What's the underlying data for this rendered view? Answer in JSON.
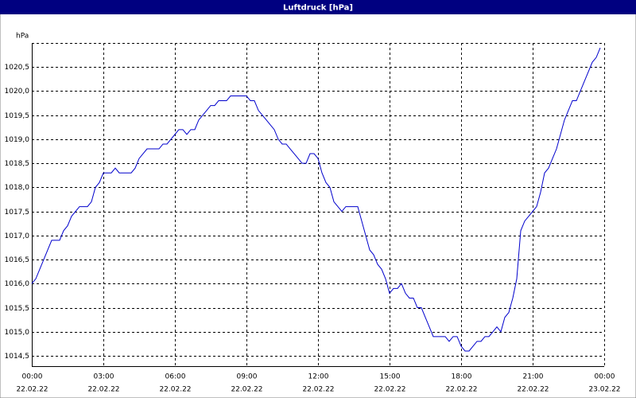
{
  "chart_data": {
    "type": "line",
    "title": "Luftdruck [hPa]",
    "ylabel": "hPa",
    "x": [
      0,
      10,
      20,
      30,
      40,
      50,
      60,
      70,
      80,
      90,
      100,
      110,
      120,
      130,
      140,
      150,
      160,
      170,
      180,
      190,
      200,
      210,
      220,
      230,
      240,
      250,
      260,
      270,
      280,
      290,
      300,
      310,
      320,
      330,
      340,
      350,
      360,
      370,
      380,
      390,
      400,
      410,
      420,
      430,
      440,
      450,
      460,
      470,
      480,
      490,
      500,
      510,
      520,
      530,
      540,
      550,
      560,
      570,
      580,
      590,
      600,
      610,
      620,
      630,
      640,
      650,
      660,
      670,
      680,
      690,
      700,
      710,
      720,
      730,
      740,
      750,
      760,
      770,
      780,
      790,
      800,
      810,
      820,
      830,
      840,
      850,
      860,
      870,
      880,
      890,
      900,
      910,
      920,
      930,
      940,
      950,
      960,
      970,
      980,
      990,
      1000,
      1010,
      1020,
      1030,
      1040,
      1050,
      1060,
      1070,
      1080,
      1090,
      1100,
      1110,
      1120,
      1130,
      1140,
      1150,
      1160,
      1170,
      1180,
      1190,
      1200,
      1210,
      1220,
      1230,
      1240,
      1250,
      1260,
      1270,
      1280,
      1290,
      1300,
      1310,
      1320,
      1330,
      1340,
      1350,
      1360,
      1370,
      1380,
      1390,
      1400,
      1410,
      1420,
      1430
    ],
    "series": [
      {
        "name": "Luftdruck",
        "color": "#0000cc",
        "values": [
          1016.0,
          1016.1,
          1016.3,
          1016.5,
          1016.7,
          1016.9,
          1016.9,
          1016.9,
          1017.1,
          1017.2,
          1017.4,
          1017.5,
          1017.6,
          1017.6,
          1017.6,
          1017.7,
          1018.0,
          1018.1,
          1018.3,
          1018.3,
          1018.3,
          1018.4,
          1018.3,
          1018.3,
          1018.3,
          1018.3,
          1018.4,
          1018.6,
          1018.7,
          1018.8,
          1018.8,
          1018.8,
          1018.8,
          1018.9,
          1018.9,
          1019.0,
          1019.1,
          1019.2,
          1019.2,
          1019.1,
          1019.2,
          1019.2,
          1019.4,
          1019.5,
          1019.6,
          1019.7,
          1019.7,
          1019.8,
          1019.8,
          1019.8,
          1019.9,
          1019.9,
          1019.9,
          1019.9,
          1019.9,
          1019.8,
          1019.8,
          1019.6,
          1019.5,
          1019.4,
          1019.3,
          1019.2,
          1019.0,
          1018.9,
          1018.9,
          1018.8,
          1018.7,
          1018.6,
          1018.5,
          1018.5,
          1018.7,
          1018.7,
          1018.6,
          1018.3,
          1018.1,
          1018.0,
          1017.7,
          1017.6,
          1017.5,
          1017.6,
          1017.6,
          1017.6,
          1017.6,
          1017.3,
          1017.0,
          1016.7,
          1016.6,
          1016.4,
          1016.3,
          1016.1,
          1015.8,
          1015.9,
          1015.9,
          1016.0,
          1015.8,
          1015.7,
          1015.7,
          1015.5,
          1015.5,
          1015.3,
          1015.1,
          1014.9,
          1014.9,
          1014.9,
          1014.9,
          1014.8,
          1014.9,
          1014.9,
          1014.7,
          1014.6,
          1014.6,
          1014.7,
          1014.8,
          1014.8,
          1014.9,
          1014.9,
          1015.0,
          1015.1,
          1015.0,
          1015.3,
          1015.4,
          1015.7,
          1016.1,
          1017.1,
          1017.3,
          1017.4,
          1017.5,
          1017.6,
          1017.9,
          1018.3,
          1018.4,
          1018.6,
          1018.8,
          1019.1,
          1019.4,
          1019.6,
          1019.8,
          1019.8,
          1020.0,
          1020.2,
          1020.4,
          1020.6,
          1020.7,
          1020.9
        ]
      }
    ],
    "xlim": [
      0,
      1440
    ],
    "xticks": [
      {
        "value": 0,
        "label": "00:00",
        "date": "22.02.22"
      },
      {
        "value": 180,
        "label": "03:00",
        "date": "22.02.22"
      },
      {
        "value": 360,
        "label": "06:00",
        "date": "22.02.22"
      },
      {
        "value": 540,
        "label": "09:00",
        "date": "22.02.22"
      },
      {
        "value": 720,
        "label": "12:00",
        "date": "22.02.22"
      },
      {
        "value": 900,
        "label": "15:00",
        "date": "22.02.22"
      },
      {
        "value": 1080,
        "label": "18:00",
        "date": "22.02.22"
      },
      {
        "value": 1260,
        "label": "21:00",
        "date": "22.02.22"
      },
      {
        "value": 1440,
        "label": "00:00",
        "date": "23.02.22"
      }
    ],
    "ylim": [
      1014.285,
      1021.0
    ],
    "yticks": [
      {
        "value": 1014.5,
        "label": "1014,5"
      },
      {
        "value": 1015.0,
        "label": "1015,0"
      },
      {
        "value": 1015.5,
        "label": "1015,5"
      },
      {
        "value": 1016.0,
        "label": "1016,0"
      },
      {
        "value": 1016.5,
        "label": "1016,5"
      },
      {
        "value": 1017.0,
        "label": "1017,0"
      },
      {
        "value": 1017.5,
        "label": "1017,5"
      },
      {
        "value": 1018.0,
        "label": "1018,0"
      },
      {
        "value": 1018.5,
        "label": "1018,5"
      },
      {
        "value": 1019.0,
        "label": "1019,0"
      },
      {
        "value": 1019.5,
        "label": "1019,5"
      },
      {
        "value": 1020.0,
        "label": "1020,0"
      },
      {
        "value": 1020.5,
        "label": "1020,5"
      }
    ],
    "grid": true
  }
}
